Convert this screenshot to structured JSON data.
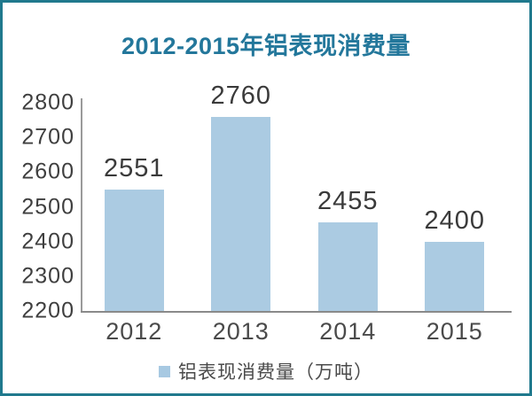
{
  "page": {
    "border_color": "#20798D",
    "background_color": "#ffffff"
  },
  "chart_data": {
    "type": "bar",
    "title": "2012-2015年铝表现消费量",
    "title_color": "#23779B",
    "categories": [
      "2012",
      "2013",
      "2014",
      "2015"
    ],
    "values": [
      2551,
      2760,
      2455,
      2400
    ],
    "ylim": [
      2200,
      2800
    ],
    "ytick_step": 100,
    "yticks": [
      2800,
      2700,
      2600,
      2500,
      2400,
      2300,
      2200
    ],
    "xlabel": "",
    "ylabel": "",
    "grid": false,
    "bar_color": "#ABCBE2",
    "axis_color": "#9a9a9a",
    "value_label_color": "#3a3a3a",
    "legend": {
      "label": "铝表现消费量（万吨）",
      "marker_color": "#A7C9E2",
      "position": "bottom"
    }
  }
}
